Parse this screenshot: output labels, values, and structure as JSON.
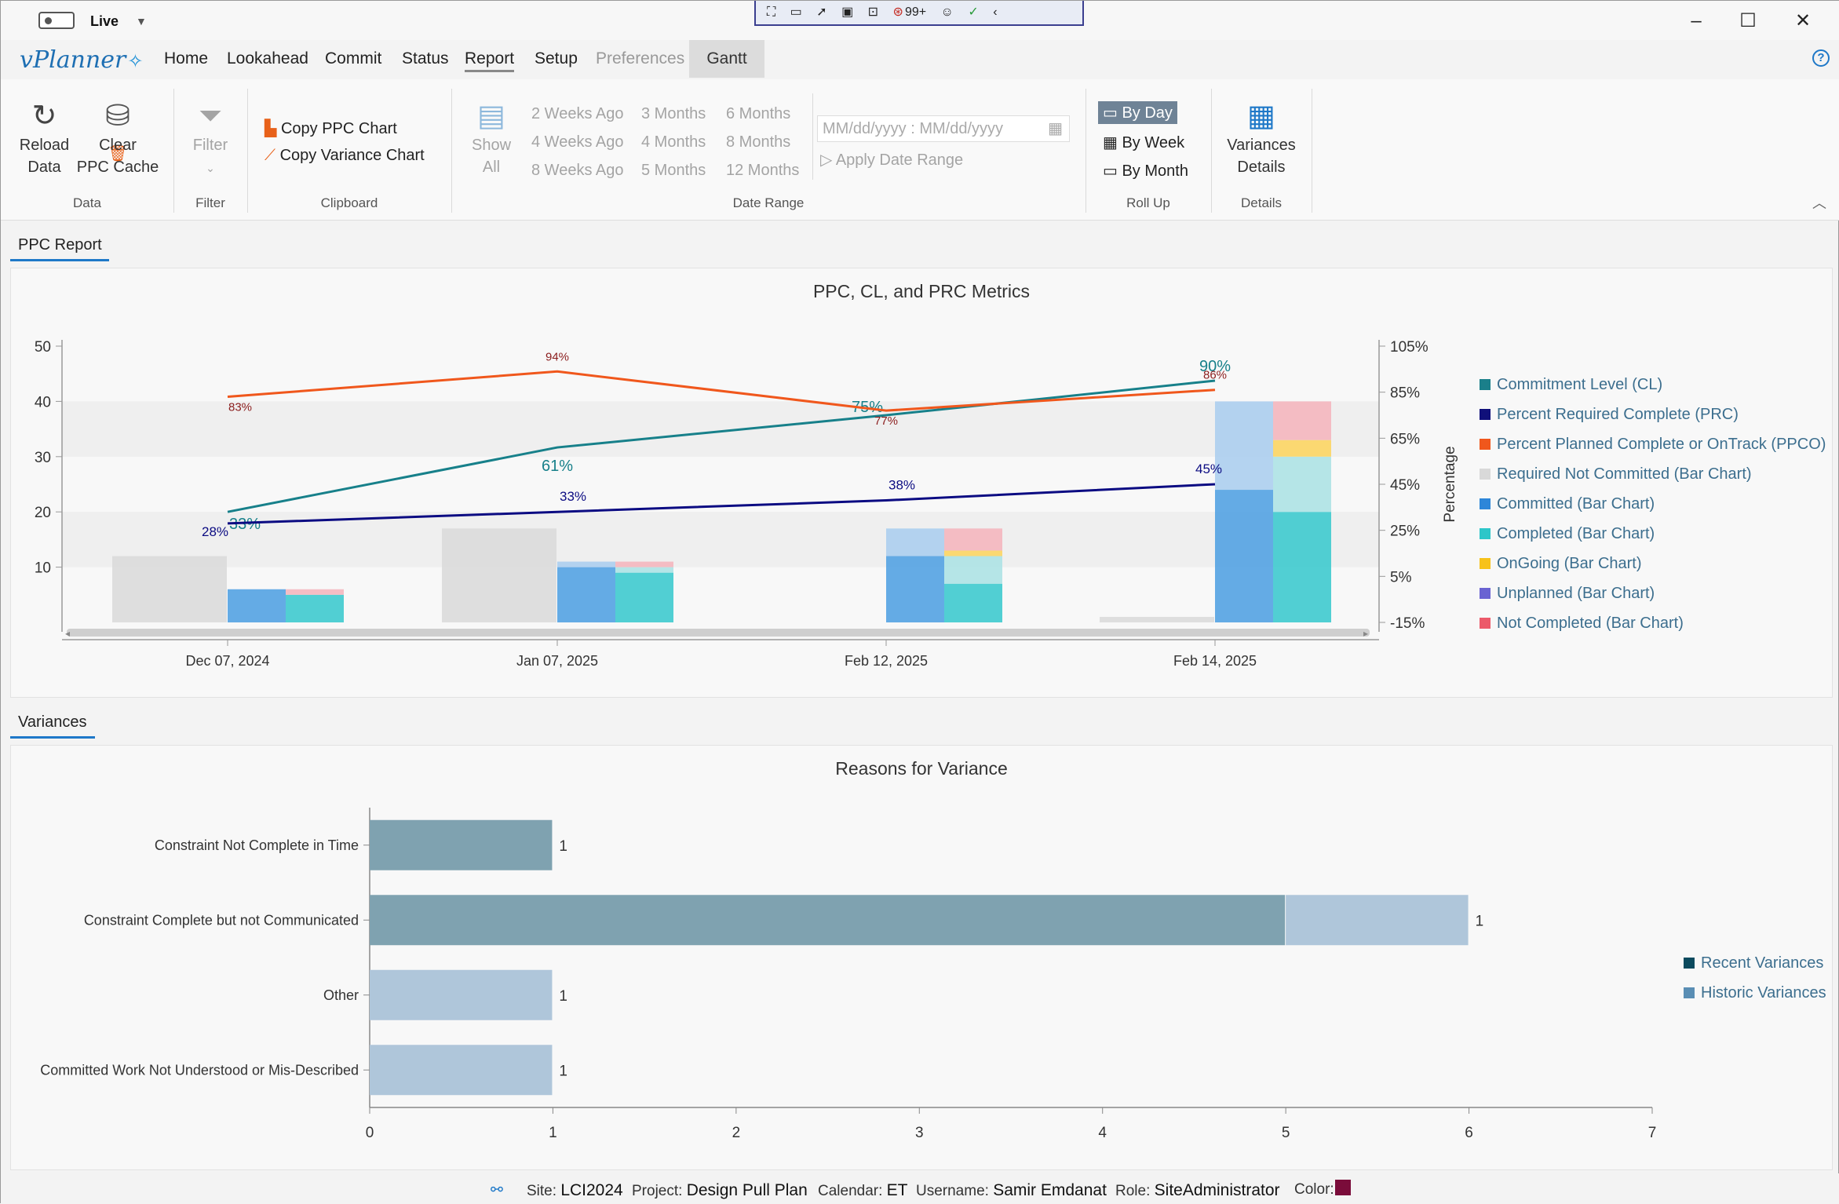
{
  "titlebar": {
    "live_label": "Live",
    "debug_badge": "99+",
    "window_title": "vPlanner"
  },
  "app": {
    "logo": "vPlanner"
  },
  "menu": [
    {
      "label": "Home",
      "state": "normal"
    },
    {
      "label": "Lookahead",
      "state": "normal"
    },
    {
      "label": "Commit",
      "state": "normal"
    },
    {
      "label": "Status",
      "state": "normal"
    },
    {
      "label": "Report",
      "state": "active"
    },
    {
      "label": "Setup",
      "state": "normal"
    },
    {
      "label": "Preferences",
      "state": "disabled"
    },
    {
      "label": "Gantt",
      "state": "highlighted"
    }
  ],
  "ribbon": {
    "data": {
      "reload_line1": "Reload",
      "reload_line2": "Data",
      "clear_line1": "Clear",
      "clear_line2": "PPC Cache",
      "group": "Data"
    },
    "filter": {
      "label": "Filter",
      "group": "Filter"
    },
    "clipboard": {
      "copy_ppc": "Copy PPC Chart",
      "copy_variance": "Copy Variance Chart",
      "group": "Clipboard"
    },
    "date_range": {
      "show_all_line1": "Show",
      "show_all_line2": "All",
      "ranges": [
        "2 Weeks Ago",
        "4 Weeks Ago",
        "8 Weeks Ago",
        "3 Months",
        "4 Months",
        "5 Months",
        "6 Months",
        "8 Months",
        "12 Months"
      ],
      "date_placeholder": "MM/dd/yyyy : MM/dd/yyyy",
      "apply": "Apply Date Range",
      "group": "Date Range"
    },
    "rollup": {
      "by_day": "By Day",
      "by_week": "By Week",
      "by_month": "By Month",
      "selected": "By Day",
      "group": "Roll Up"
    },
    "details": {
      "line1": "Variances",
      "line2": "Details",
      "group": "Details"
    }
  },
  "ppc_tab": "PPC Report",
  "variances_tab": "Variances",
  "chart_data": [
    {
      "type": "bar",
      "title": "PPC, CL, and PRC Metrics",
      "categories": [
        "Dec 07, 2024",
        "Jan 07, 2025",
        "Feb 12, 2025",
        "Feb 14, 2025"
      ],
      "ylim": [
        0,
        50
      ],
      "yticks": [
        "10",
        "20",
        "30",
        "40",
        "50"
      ],
      "y2label": "Percentage",
      "y2lim": [
        -15,
        105
      ],
      "y2ticks": [
        "105%",
        "85%",
        "65%",
        "45%",
        "25%",
        "5%",
        "-15%"
      ],
      "bar_series": [
        {
          "name": "Required Not Committed (Bar Chart)",
          "color": "#d9d9d9",
          "stack": "req",
          "values": [
            12,
            17,
            0,
            1
          ]
        },
        {
          "name": "Committed (Bar Chart)",
          "color": "#4a9ee2",
          "stack": "com",
          "values": [
            6,
            10,
            12,
            24
          ]
        },
        {
          "name": "Committed (Bar Chart)",
          "color": "#a8cdef",
          "stack": "com",
          "values": [
            0,
            1,
            5,
            16
          ]
        },
        {
          "name": "Completed (Bar Chart)",
          "color": "#34c8cc",
          "stack": "cmp",
          "values": [
            5,
            9,
            7,
            20
          ]
        },
        {
          "name": "Completed (Bar Chart)",
          "color": "#a9e2e4",
          "stack": "cmp",
          "values": [
            0,
            1,
            5,
            10
          ]
        },
        {
          "name": "OnGoing (Bar Chart)",
          "color": "#fdd35a",
          "stack": "cmp",
          "values": [
            0,
            0,
            1,
            3
          ]
        },
        {
          "name": "Unplanned (Bar Chart)",
          "color": "#7a73d6",
          "stack": "cmp",
          "values": [
            0,
            0,
            0,
            0
          ]
        },
        {
          "name": "Not Completed (Bar Chart)",
          "color": "#f5b3bb",
          "stack": "cmp",
          "values": [
            1,
            1,
            4,
            7
          ]
        }
      ],
      "line_series": [
        {
          "name": "Commitment Level (CL)",
          "color": "#17808a",
          "values": [
            33,
            61,
            75,
            90
          ],
          "labels": [
            "33%",
            "61%",
            "75%",
            "90%"
          ]
        },
        {
          "name": "Percent Required Complete (PRC)",
          "color": "#0b0b82",
          "values": [
            28,
            33,
            38,
            45
          ],
          "labels": [
            "28%",
            "33%",
            "38%",
            "45%"
          ]
        },
        {
          "name": "Percent Planned Complete or OnTrack (PPCO)",
          "color": "#f0571c",
          "values": [
            83,
            94,
            77,
            86
          ],
          "labels": [
            "83%",
            "94%",
            "77%",
            "86%"
          ]
        }
      ],
      "legend": [
        {
          "label": "Commitment Level (CL)",
          "color": "#1a7f8a"
        },
        {
          "label": "Percent Required Complete (PRC)",
          "color": "#10107a"
        },
        {
          "label": "Percent Planned Complete or OnTrack (PPCO)",
          "color": "#f0571c"
        },
        {
          "label": "Required Not Committed (Bar Chart)",
          "color": "#d9d9d9"
        },
        {
          "label": "Committed (Bar Chart)",
          "color": "#2d86d9"
        },
        {
          "label": "Completed (Bar Chart)",
          "color": "#2dc6c9"
        },
        {
          "label": "OnGoing (Bar Chart)",
          "color": "#f7c21a"
        },
        {
          "label": "Unplanned (Bar Chart)",
          "color": "#6a63d2"
        },
        {
          "label": "Not Completed (Bar Chart)",
          "color": "#ec5a6a"
        }
      ]
    },
    {
      "type": "bar",
      "title": "Reasons for Variance",
      "categories": [
        "Constraint Not Complete in Time",
        "Constraint Complete but not Communicated",
        "Other",
        "Committed Work Not Understood or Mis-Described"
      ],
      "xlim": [
        0,
        7
      ],
      "xticks": [
        "0",
        "1",
        "2",
        "3",
        "4",
        "5",
        "6",
        "7"
      ],
      "series": [
        {
          "name": "Recent Variances",
          "color": "#7fa2b0",
          "values": [
            1,
            5,
            0,
            0
          ],
          "labels": [
            "1",
            "5",
            "",
            ""
          ]
        },
        {
          "name": "Historic Variances",
          "color": "#afc6da",
          "values": [
            0,
            1,
            1,
            1
          ],
          "labels": [
            "",
            "1",
            "1",
            "1"
          ]
        }
      ],
      "legend": [
        {
          "label": "Recent Variances",
          "color": "#0b4a5e"
        },
        {
          "label": "Historic Variances",
          "color": "#5a8eb4"
        }
      ]
    }
  ],
  "status": {
    "site_label": "Site:",
    "site": "LCI2024",
    "project_label": "Project:",
    "project": "Design Pull Plan",
    "calendar_label": "Calendar:",
    "calendar": "ET",
    "username_label": "Username:",
    "username": "Samir Emdanat",
    "role_label": "Role:",
    "role": "SiteAdministrator",
    "color_label": "Color:",
    "color": "#7a0c3a"
  }
}
